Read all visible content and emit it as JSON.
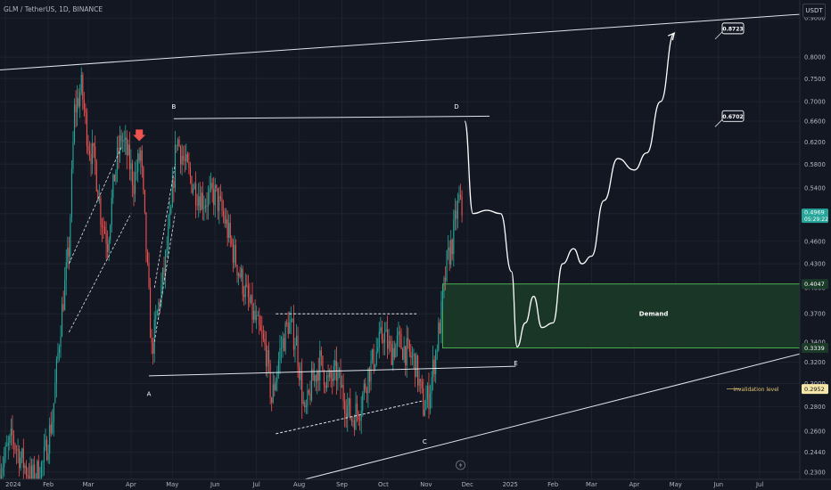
{
  "header": {
    "symbol_title": "GLM / TetherUS, 1D, BINANCE",
    "currency": "USDT"
  },
  "colors": {
    "background": "#131722",
    "up": "#26a69a",
    "down": "#ef5350",
    "demand_fill": "#1b3a28",
    "demand_border": "#4caf50",
    "annotation": "#ffffff"
  },
  "chart_data": {
    "type": "candlestick",
    "scale": "log",
    "ylim": [
      0.225,
      0.95
    ],
    "xlim": [
      "2023-12-28",
      "2025-07-30"
    ],
    "y_ticks": [
      "0.9000",
      "0.8000",
      "0.7500",
      "0.7000",
      "0.6600",
      "0.6200",
      "0.5800",
      "0.5400",
      "0.5000",
      "0.4600",
      "0.4300",
      "0.4000",
      "0.3700",
      "0.3400",
      "0.3200",
      "0.3000",
      "0.2800",
      "0.2600",
      "0.2440",
      "0.2300"
    ],
    "x_ticks": [
      {
        "label": "2024",
        "date": "2024-01-01"
      },
      {
        "label": "Feb",
        "date": "2024-02-01"
      },
      {
        "label": "Mar",
        "date": "2024-03-01"
      },
      {
        "label": "Apr",
        "date": "2024-04-01"
      },
      {
        "label": "May",
        "date": "2024-05-01"
      },
      {
        "label": "Jun",
        "date": "2024-06-01"
      },
      {
        "label": "Jul",
        "date": "2024-07-01"
      },
      {
        "label": "Aug",
        "date": "2024-08-01"
      },
      {
        "label": "Sep",
        "date": "2024-09-01"
      },
      {
        "label": "Oct",
        "date": "2024-10-01"
      },
      {
        "label": "Nov",
        "date": "2024-11-01"
      },
      {
        "label": "Dec",
        "date": "2024-12-01"
      },
      {
        "label": "2025",
        "date": "2025-01-01"
      },
      {
        "label": "Feb",
        "date": "2025-02-01"
      },
      {
        "label": "Mar",
        "date": "2025-03-01"
      },
      {
        "label": "Apr",
        "date": "2025-04-01"
      },
      {
        "label": "May",
        "date": "2025-05-01"
      },
      {
        "label": "Jun",
        "date": "2025-06-01"
      },
      {
        "label": "Jul",
        "date": "2025-07-01"
      }
    ],
    "price_path": [
      [
        "2023-12-28",
        0.232
      ],
      [
        "2024-01-06",
        0.255
      ],
      [
        "2024-01-12",
        0.24
      ],
      [
        "2024-01-20",
        0.225
      ],
      [
        "2024-01-28",
        0.235
      ],
      [
        "2024-02-04",
        0.27
      ],
      [
        "2024-02-10",
        0.36
      ],
      [
        "2024-02-16",
        0.45
      ],
      [
        "2024-02-20",
        0.68
      ],
      [
        "2024-02-25",
        0.73
      ],
      [
        "2024-03-01",
        0.62
      ],
      [
        "2024-03-06",
        0.58
      ],
      [
        "2024-03-10",
        0.5
      ],
      [
        "2024-03-15",
        0.46
      ],
      [
        "2024-03-20",
        0.56
      ],
      [
        "2024-03-25",
        0.63
      ],
      [
        "2024-03-29",
        0.6
      ],
      [
        "2024-04-03",
        0.55
      ],
      [
        "2024-04-08",
        0.6
      ],
      [
        "2024-04-12",
        0.45
      ],
      [
        "2024-04-16",
        0.33
      ],
      [
        "2024-04-20",
        0.37
      ],
      [
        "2024-04-25",
        0.42
      ],
      [
        "2024-04-30",
        0.5
      ],
      [
        "2024-05-04",
        0.63
      ],
      [
        "2024-05-10",
        0.58
      ],
      [
        "2024-05-17",
        0.54
      ],
      [
        "2024-05-24",
        0.52
      ],
      [
        "2024-06-01",
        0.53
      ],
      [
        "2024-06-08",
        0.49
      ],
      [
        "2024-06-15",
        0.44
      ],
      [
        "2024-06-22",
        0.4
      ],
      [
        "2024-06-28",
        0.37
      ],
      [
        "2024-07-03",
        0.35
      ],
      [
        "2024-07-08",
        0.33
      ],
      [
        "2024-07-12",
        0.285
      ],
      [
        "2024-07-18",
        0.33
      ],
      [
        "2024-07-24",
        0.36
      ],
      [
        "2024-07-30",
        0.34
      ],
      [
        "2024-08-05",
        0.27
      ],
      [
        "2024-08-10",
        0.3
      ],
      [
        "2024-08-16",
        0.32
      ],
      [
        "2024-08-22",
        0.3
      ],
      [
        "2024-08-28",
        0.31
      ],
      [
        "2024-09-02",
        0.29
      ],
      [
        "2024-09-08",
        0.27
      ],
      [
        "2024-09-14",
        0.28
      ],
      [
        "2024-09-20",
        0.31
      ],
      [
        "2024-09-26",
        0.33
      ],
      [
        "2024-10-01",
        0.35
      ],
      [
        "2024-10-06",
        0.33
      ],
      [
        "2024-10-12",
        0.34
      ],
      [
        "2024-10-18",
        0.33
      ],
      [
        "2024-10-24",
        0.32
      ],
      [
        "2024-10-30",
        0.28
      ],
      [
        "2024-11-03",
        0.29
      ],
      [
        "2024-11-08",
        0.33
      ],
      [
        "2024-11-12",
        0.37
      ],
      [
        "2024-11-16",
        0.43
      ],
      [
        "2024-11-20",
        0.46
      ],
      [
        "2024-11-23",
        0.5
      ],
      [
        "2024-11-25",
        0.52
      ],
      [
        "2024-11-27",
        0.4969
      ]
    ],
    "annotations": [
      {
        "type": "text",
        "label": "A",
        "date": "2024-04-14",
        "price": 0.291
      },
      {
        "type": "text",
        "label": "B",
        "date": "2024-05-02",
        "price": 0.69
      },
      {
        "type": "text",
        "label": "C",
        "date": "2024-10-31",
        "price": 0.252
      },
      {
        "type": "text",
        "label": "D",
        "date": "2024-11-23",
        "price": 0.69
      },
      {
        "type": "text",
        "label": "E",
        "date": "2025-01-05",
        "price": 0.319
      },
      {
        "type": "text",
        "label": "Demand",
        "date": "2025-04-15",
        "price": 0.37
      },
      {
        "type": "text",
        "label": "invalidation level",
        "date": "2025-05-30",
        "price": 0.2952
      }
    ],
    "price_labels": {
      "current": {
        "price_text": "0.4969",
        "countdown": "05:29:22",
        "price": 0.4969
      },
      "demand_top": {
        "price_text": "0.4047",
        "price": 0.4047
      },
      "demand_bottom": {
        "price_text": "0.3339",
        "price": 0.3339
      },
      "invalidation": {
        "price_text": "0.2952",
        "price": 0.2952
      }
    },
    "targets": [
      {
        "label": "0.8723",
        "price": 0.8723
      },
      {
        "label": "0.6702",
        "price": 0.6702
      }
    ],
    "demand_zone": {
      "from_date": "2024-11-13",
      "to_date": "2025-07-30",
      "price_top": 0.4047,
      "price_bottom": 0.3339
    },
    "lines": {
      "upper_channel": [
        [
          "2023-12-28",
          0.77
        ],
        [
          "2025-07-30",
          0.91
        ]
      ],
      "lower_channel": [
        [
          "2024-08-05",
          0.225
        ],
        [
          "2025-07-30",
          0.328
        ]
      ],
      "a_line": [
        [
          "2024-04-14",
          0.307
        ],
        [
          "2025-01-05",
          0.316
        ]
      ],
      "bd_line": [
        [
          "2024-05-02",
          0.665
        ],
        [
          "2024-12-17",
          0.67
        ]
      ],
      "range_top": [
        [
          "2024-07-15",
          0.37
        ],
        [
          "2024-10-25",
          0.37
        ]
      ],
      "range_bottom": [
        [
          "2024-07-15",
          0.258
        ],
        [
          "2024-10-30",
          0.285
        ]
      ]
    },
    "projection_path": [
      [
        "2024-11-29",
        0.66
      ],
      [
        "2024-12-05",
        0.5
      ],
      [
        "2024-12-15",
        0.505
      ],
      [
        "2024-12-25",
        0.5
      ],
      [
        "2025-01-02",
        0.42
      ],
      [
        "2025-01-06",
        0.335
      ],
      [
        "2025-01-12",
        0.36
      ],
      [
        "2025-01-18",
        0.39
      ],
      [
        "2025-01-24",
        0.355
      ],
      [
        "2025-02-01",
        0.36
      ],
      [
        "2025-02-08",
        0.43
      ],
      [
        "2025-02-16",
        0.45
      ],
      [
        "2025-02-22",
        0.43
      ],
      [
        "2025-03-01",
        0.44
      ],
      [
        "2025-03-10",
        0.52
      ],
      [
        "2025-03-20",
        0.59
      ],
      [
        "2025-04-01",
        0.57
      ],
      [
        "2025-04-10",
        0.6
      ],
      [
        "2025-04-20",
        0.7
      ],
      [
        "2025-04-30",
        0.86
      ]
    ]
  }
}
